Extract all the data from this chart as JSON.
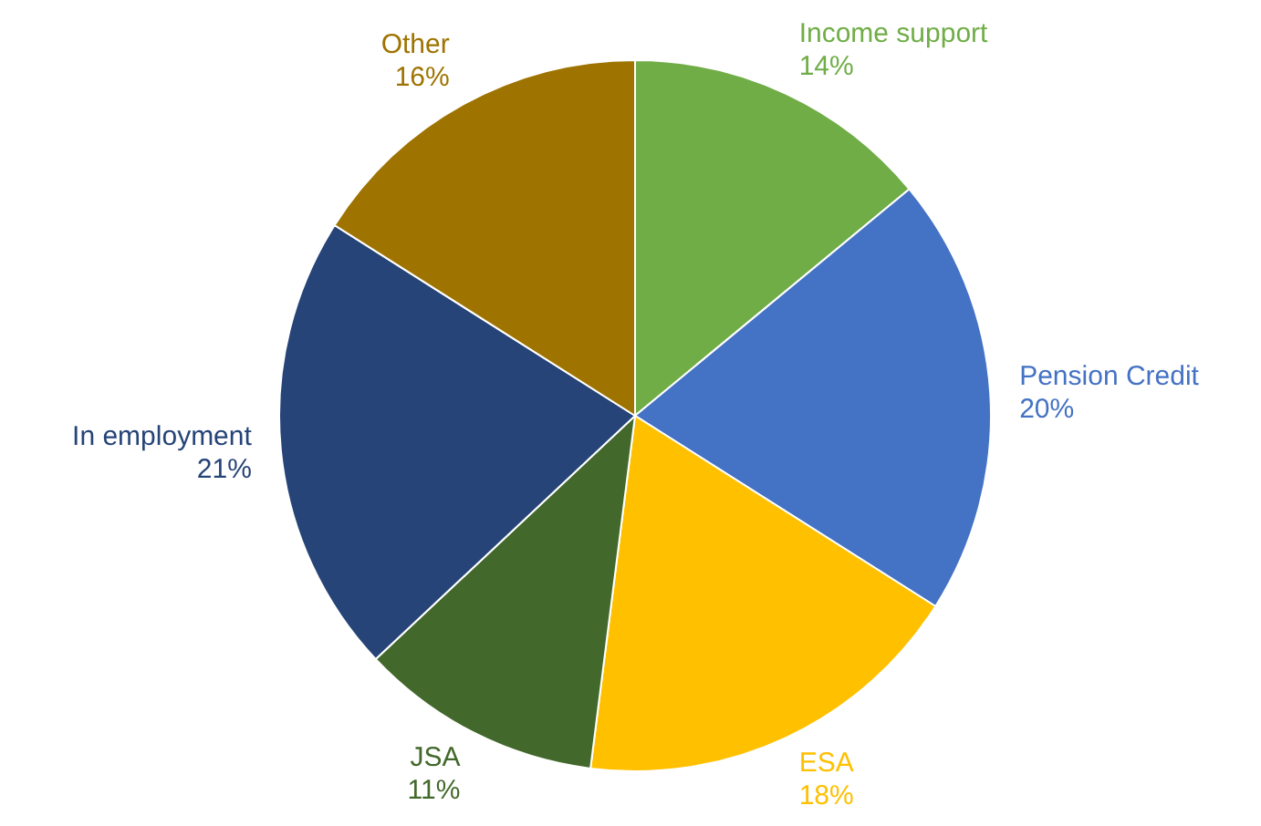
{
  "chart_data": {
    "type": "pie",
    "categories": [
      "Income support",
      "Pension Credit",
      "ESA",
      "JSA",
      "In employment",
      "Other"
    ],
    "values": [
      14,
      20,
      18,
      11,
      21,
      16
    ],
    "value_labels": [
      "14%",
      "20%",
      "18%",
      "11%",
      "21%",
      "16%"
    ],
    "colors": [
      "#70ad47",
      "#4472c4",
      "#ffc000",
      "#43682b",
      "#264478",
      "#9e7300"
    ]
  }
}
